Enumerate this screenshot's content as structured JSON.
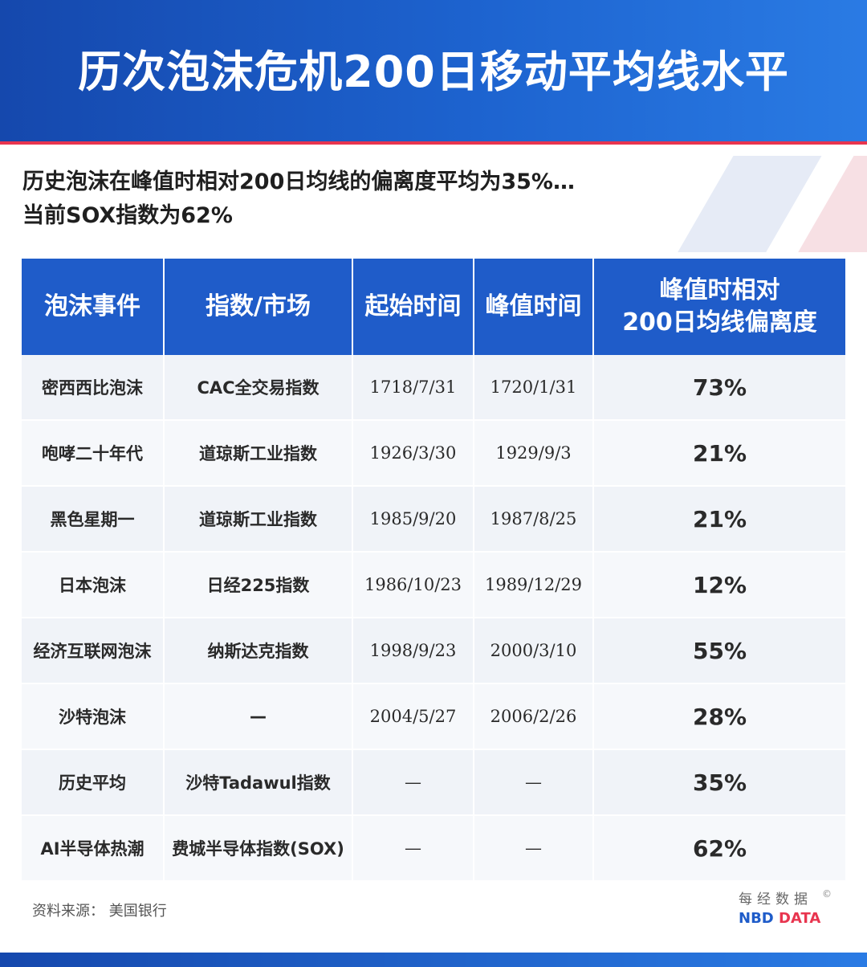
{
  "title": "历次泡沫危机200日移动平均线水平",
  "subtitle": {
    "line1": "历史泡沫在峰值时相对200日均线的偏离度平均为35%…",
    "line2": "当前SOX指数为62%"
  },
  "chart_data": {
    "type": "table",
    "columns": [
      "泡沫事件",
      "指数/市场",
      "起始时间",
      "峰值时间",
      "峰值时相对",
      "200日均线偏离度"
    ],
    "rows": [
      {
        "event": "密西西比泡沫",
        "index": "CAC全交易指数",
        "start": "1718/7/31",
        "peak": "1720/1/31",
        "deviation": "73%"
      },
      {
        "event": "咆哮二十年代",
        "index": "道琼斯工业指数",
        "start": "1926/3/30",
        "peak": "1929/9/3",
        "deviation": "21%"
      },
      {
        "event": "黑色星期一",
        "index": "道琼斯工业指数",
        "start": "1985/9/20",
        "peak": "1987/8/25",
        "deviation": "21%"
      },
      {
        "event": "日本泡沫",
        "index": "日经225指数",
        "start": "1986/10/23",
        "peak": "1989/12/29",
        "deviation": "12%"
      },
      {
        "event": "经济互联网泡沫",
        "index": "纳斯达克指数",
        "start": "1998/9/23",
        "peak": "2000/3/10",
        "deviation": "55%"
      },
      {
        "event": "沙特泡沫",
        "index": "—",
        "start": "2004/5/27",
        "peak": "2006/2/26",
        "deviation": "28%"
      },
      {
        "event": "历史平均",
        "index": "沙特Tadawul指数",
        "start": "—",
        "peak": "—",
        "deviation": "35%"
      },
      {
        "event": "AI半导体热潮",
        "index": "费城半导体指数(SOX)",
        "start": "—",
        "peak": "—",
        "deviation": "62%"
      }
    ]
  },
  "source": "资料来源：  美国银行",
  "brand": {
    "cn": "每经数据",
    "en_part1": "NBD",
    "en_part2": " DATA",
    "copyright": "©"
  },
  "colors": {
    "header_blue": "#1f5cc9",
    "accent_red": "#e8354f",
    "value_blue": "#1f5cc9"
  }
}
